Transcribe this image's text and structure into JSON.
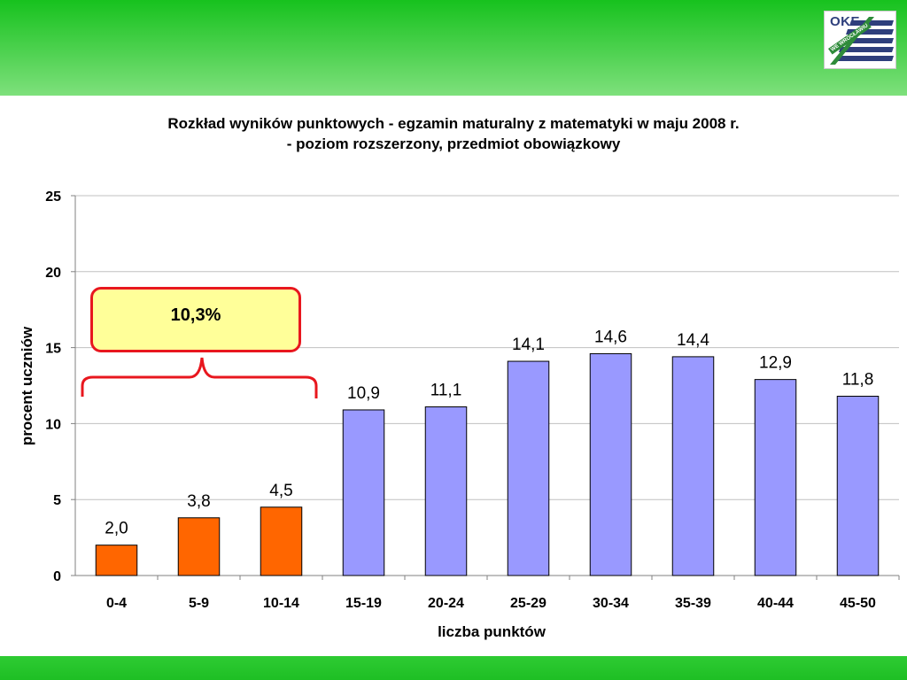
{
  "title_line1": "Rozkład wyników punktowych - egzamin maturalny z matematyki w maju 2008 r.",
  "title_line2": "- poziom rozszerzony, przedmiot obowiązkowy",
  "logo": {
    "text": "OKE",
    "sub": "WE WROCŁAWIU"
  },
  "callout": {
    "text": "10,3%",
    "border_color": "#e8171e",
    "fill_color": "#ffff99"
  },
  "colors": {
    "highlight_bar": "#ff6600",
    "regular_bar": "#9999ff",
    "bar_outline": "#000000",
    "band_green": "#1ebf24"
  },
  "chart_data": {
    "type": "bar",
    "title": "Rozkład wyników punktowych - egzamin maturalny z matematyki w maju 2008 r. - poziom rozszerzony, przedmiot obowiązkowy",
    "xlabel": "liczba punktów",
    "ylabel": "procent uczniów",
    "ylim": [
      0,
      25
    ],
    "yticks": [
      0,
      5,
      10,
      15,
      20,
      25
    ],
    "grid": true,
    "categories": [
      "0-4",
      "5-9",
      "10-14",
      "15-19",
      "20-24",
      "25-29",
      "30-34",
      "35-39",
      "40-44",
      "45-50"
    ],
    "values": [
      2.0,
      3.8,
      4.5,
      10.9,
      11.1,
      14.1,
      14.6,
      14.4,
      12.9,
      11.8
    ],
    "value_labels": [
      "2,0",
      "3,8",
      "4,5",
      "10,9",
      "11,1",
      "14,1",
      "14,6",
      "14,4",
      "12,9",
      "11,8"
    ],
    "highlighted_categories": [
      "0-4",
      "5-9",
      "10-14"
    ]
  }
}
